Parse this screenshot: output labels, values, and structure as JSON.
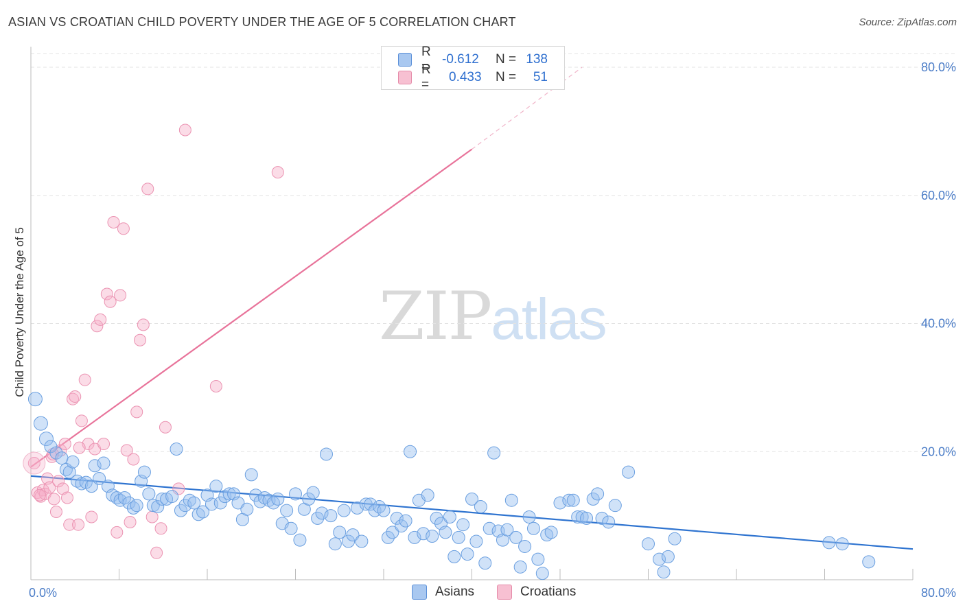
{
  "title": "ASIAN VS CROATIAN CHILD POVERTY UNDER THE AGE OF 5 CORRELATION CHART",
  "source": "Source: ZipAtlas.com",
  "watermark": {
    "zip": "ZIP",
    "atlas": "atlas"
  },
  "legend": {
    "rows": [
      {
        "r_label": "R =",
        "r_value": "-0.612",
        "n_label": "N =",
        "n_value": "138",
        "color": "#a9c8f0",
        "border": "#5a8fd8"
      },
      {
        "r_label": "R =",
        "r_value": "0.433",
        "n_label": "N =",
        "n_value": "51",
        "color": "#f7c0d2",
        "border": "#e58aa8"
      }
    ]
  },
  "bottom_legend": [
    "Asians",
    "Croatians"
  ],
  "chart_data": {
    "type": "scatter",
    "title": "ASIAN VS CROATIAN CHILD POVERTY UNDER THE AGE OF 5 CORRELATION CHART",
    "xlabel": "",
    "ylabel": "Child Poverty Under the Age of 5",
    "xlim": [
      0,
      80
    ],
    "ylim": [
      0,
      80
    ],
    "x_tick_labels": [
      "0.0%",
      "80.0%"
    ],
    "y_tick_labels": [
      "20.0%",
      "40.0%",
      "60.0%",
      "80.0%"
    ],
    "y_ticks": [
      20,
      40,
      60,
      80
    ],
    "grid": true,
    "legend_position": "top-center",
    "colors": {
      "asians": "#6fa3e6",
      "croatians": "#f29bb8",
      "asians_line": "#2f74d0",
      "croatians_line": "#e8739a"
    },
    "series": [
      {
        "name": "Asians",
        "regression": {
          "x0": 0,
          "y0": 16.2,
          "x1": 80,
          "y1": 4.8
        },
        "points": [
          [
            0.4,
            28.2
          ],
          [
            0.9,
            24.4
          ],
          [
            1.4,
            22.0
          ],
          [
            1.8,
            20.8
          ],
          [
            2.3,
            19.8
          ],
          [
            2.8,
            19.0
          ],
          [
            3.2,
            17.2
          ],
          [
            3.5,
            16.8
          ],
          [
            3.8,
            18.4
          ],
          [
            4.2,
            15.4
          ],
          [
            4.6,
            15.0
          ],
          [
            5.0,
            15.2
          ],
          [
            5.5,
            14.6
          ],
          [
            5.8,
            17.8
          ],
          [
            6.2,
            15.8
          ],
          [
            6.6,
            18.2
          ],
          [
            7.0,
            14.6
          ],
          [
            7.4,
            13.2
          ],
          [
            7.8,
            12.8
          ],
          [
            8.1,
            12.4
          ],
          [
            8.5,
            12.8
          ],
          [
            8.9,
            12.0
          ],
          [
            9.3,
            11.2
          ],
          [
            9.6,
            11.6
          ],
          [
            10.0,
            15.4
          ],
          [
            10.3,
            16.8
          ],
          [
            10.7,
            13.4
          ],
          [
            11.1,
            11.6
          ],
          [
            11.5,
            11.4
          ],
          [
            11.9,
            12.6
          ],
          [
            12.3,
            12.6
          ],
          [
            12.8,
            13.0
          ],
          [
            13.2,
            20.4
          ],
          [
            13.6,
            10.8
          ],
          [
            14.0,
            11.6
          ],
          [
            14.4,
            12.4
          ],
          [
            14.8,
            12.0
          ],
          [
            15.2,
            10.2
          ],
          [
            15.6,
            10.6
          ],
          [
            16.0,
            13.2
          ],
          [
            16.4,
            11.8
          ],
          [
            16.8,
            14.6
          ],
          [
            17.2,
            12.0
          ],
          [
            17.6,
            13.0
          ],
          [
            18.0,
            13.4
          ],
          [
            18.4,
            13.4
          ],
          [
            18.8,
            12.0
          ],
          [
            19.2,
            9.4
          ],
          [
            19.6,
            11.0
          ],
          [
            20.0,
            16.4
          ],
          [
            20.4,
            13.2
          ],
          [
            20.8,
            12.2
          ],
          [
            21.2,
            12.8
          ],
          [
            21.6,
            12.4
          ],
          [
            22.0,
            12.0
          ],
          [
            22.4,
            12.6
          ],
          [
            22.8,
            8.8
          ],
          [
            23.2,
            10.8
          ],
          [
            23.6,
            8.0
          ],
          [
            24.0,
            13.4
          ],
          [
            24.4,
            6.2
          ],
          [
            24.8,
            11.0
          ],
          [
            25.2,
            12.6
          ],
          [
            25.6,
            13.6
          ],
          [
            26.0,
            9.6
          ],
          [
            26.4,
            10.4
          ],
          [
            26.8,
            19.6
          ],
          [
            27.2,
            10.0
          ],
          [
            27.6,
            5.6
          ],
          [
            28.0,
            7.4
          ],
          [
            28.4,
            10.8
          ],
          [
            28.8,
            6.0
          ],
          [
            29.2,
            7.0
          ],
          [
            29.6,
            11.2
          ],
          [
            30.0,
            6.0
          ],
          [
            30.4,
            11.8
          ],
          [
            30.8,
            11.8
          ],
          [
            31.2,
            10.8
          ],
          [
            31.6,
            11.4
          ],
          [
            32.0,
            10.8
          ],
          [
            32.4,
            6.6
          ],
          [
            32.8,
            7.4
          ],
          [
            33.2,
            9.6
          ],
          [
            33.6,
            8.4
          ],
          [
            34.0,
            9.2
          ],
          [
            34.4,
            20.0
          ],
          [
            34.8,
            6.6
          ],
          [
            35.2,
            12.4
          ],
          [
            35.6,
            7.2
          ],
          [
            36.0,
            13.2
          ],
          [
            36.4,
            6.8
          ],
          [
            36.8,
            9.6
          ],
          [
            37.2,
            8.8
          ],
          [
            37.6,
            7.4
          ],
          [
            38.0,
            9.8
          ],
          [
            38.4,
            3.6
          ],
          [
            38.8,
            6.6
          ],
          [
            39.2,
            8.6
          ],
          [
            39.6,
            4.0
          ],
          [
            40.0,
            12.6
          ],
          [
            40.4,
            6.0
          ],
          [
            40.8,
            11.4
          ],
          [
            41.2,
            2.6
          ],
          [
            41.6,
            8.0
          ],
          [
            42.0,
            19.8
          ],
          [
            42.4,
            7.6
          ],
          [
            42.8,
            6.2
          ],
          [
            43.2,
            7.8
          ],
          [
            43.6,
            12.4
          ],
          [
            44.0,
            6.6
          ],
          [
            44.4,
            2.0
          ],
          [
            44.8,
            5.2
          ],
          [
            45.2,
            9.8
          ],
          [
            45.6,
            8.0
          ],
          [
            46.0,
            3.2
          ],
          [
            46.4,
            1.0
          ],
          [
            46.8,
            7.0
          ],
          [
            47.2,
            7.4
          ],
          [
            48.0,
            12.0
          ],
          [
            48.8,
            12.4
          ],
          [
            49.2,
            12.4
          ],
          [
            49.6,
            9.8
          ],
          [
            50.0,
            9.8
          ],
          [
            50.4,
            9.6
          ],
          [
            51.0,
            12.6
          ],
          [
            51.4,
            13.4
          ],
          [
            51.8,
            9.6
          ],
          [
            52.4,
            9.0
          ],
          [
            53.0,
            11.6
          ],
          [
            54.2,
            16.8
          ],
          [
            56.0,
            5.6
          ],
          [
            57.0,
            3.2
          ],
          [
            57.4,
            1.2
          ],
          [
            57.8,
            3.6
          ],
          [
            58.4,
            6.4
          ],
          [
            72.4,
            5.8
          ],
          [
            73.6,
            5.6
          ],
          [
            76.0,
            2.8
          ]
        ]
      },
      {
        "name": "Croatians",
        "regression": {
          "x0": 0,
          "y0": 17.6,
          "x1": 40,
          "y1": 67.2,
          "dash_to": [
            50,
            80
          ]
        },
        "points": [
          [
            0.3,
            18.2
          ],
          [
            0.6,
            13.6
          ],
          [
            0.9,
            13.0
          ],
          [
            1.1,
            14.0
          ],
          [
            1.3,
            13.4
          ],
          [
            1.5,
            15.8
          ],
          [
            1.7,
            14.4
          ],
          [
            1.9,
            19.2
          ],
          [
            2.1,
            12.6
          ],
          [
            2.3,
            10.6
          ],
          [
            2.5,
            15.4
          ],
          [
            2.7,
            20.2
          ],
          [
            2.9,
            14.2
          ],
          [
            3.1,
            21.2
          ],
          [
            3.3,
            12.8
          ],
          [
            3.5,
            8.6
          ],
          [
            3.8,
            28.2
          ],
          [
            4.0,
            28.6
          ],
          [
            4.3,
            8.6
          ],
          [
            4.6,
            24.8
          ],
          [
            4.9,
            31.2
          ],
          [
            5.2,
            21.2
          ],
          [
            5.5,
            9.8
          ],
          [
            5.8,
            20.4
          ],
          [
            6.0,
            39.6
          ],
          [
            6.3,
            40.6
          ],
          [
            6.6,
            21.2
          ],
          [
            6.9,
            44.6
          ],
          [
            7.2,
            43.4
          ],
          [
            7.5,
            55.8
          ],
          [
            7.8,
            7.4
          ],
          [
            8.1,
            44.4
          ],
          [
            8.4,
            54.8
          ],
          [
            8.7,
            20.2
          ],
          [
            9.0,
            9.0
          ],
          [
            9.3,
            18.8
          ],
          [
            9.6,
            26.2
          ],
          [
            9.9,
            37.4
          ],
          [
            10.2,
            39.8
          ],
          [
            10.6,
            61.0
          ],
          [
            11.0,
            9.8
          ],
          [
            11.4,
            4.2
          ],
          [
            11.8,
            8.0
          ],
          [
            12.2,
            23.8
          ],
          [
            13.4,
            14.2
          ],
          [
            14.0,
            70.2
          ],
          [
            16.8,
            30.2
          ],
          [
            22.4,
            63.6
          ],
          [
            0.8,
            13.2
          ],
          [
            2.0,
            19.6
          ],
          [
            4.4,
            20.6
          ]
        ]
      }
    ]
  }
}
